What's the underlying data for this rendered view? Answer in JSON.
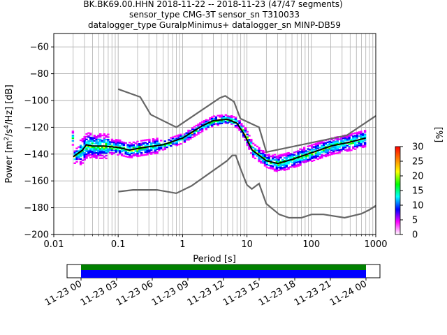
{
  "chart_data": {
    "type": "heatmap",
    "title_lines": [
      "BK.BK69.00.HHN   2018-11-22 -- 2018-11-23  (47/47 segments)",
      "sensor_type CMG-3T sensor_sn T310033",
      "datalogger_type GuralpMinimus+ datalogger_sn MINP-DB59"
    ],
    "xlabel": "Period [s]",
    "ylabel_main": "Power [m",
    "ylabel_sup1": "2",
    "ylabel_mid": "/s",
    "ylabel_sup2": "4",
    "ylabel_end": "/Hz] [dB]",
    "xscale": "log",
    "xlim": [
      0.01,
      1000
    ],
    "ylim": [
      -200,
      -50
    ],
    "grid": true,
    "xticks": [
      0.01,
      0.1,
      1,
      10,
      100,
      1000
    ],
    "xtick_labels": [
      "0.01",
      "0.1",
      "1",
      "10",
      "100",
      "1000"
    ],
    "yticks": [
      -200,
      -180,
      -160,
      -140,
      -120,
      -100,
      -80,
      -60
    ],
    "ytick_labels": [
      "−200",
      "−180",
      "−160",
      "−140",
      "−120",
      "−100",
      "−80",
      "−60"
    ],
    "colorbar": {
      "label": "[%]",
      "range": [
        0,
        30
      ],
      "ticks": [
        "0",
        "5",
        "10",
        "15",
        "20",
        "25",
        "30"
      ],
      "colormap": [
        "#ffffff",
        "#ff00ff",
        "#0000ff",
        "#00ffff",
        "#00ff00",
        "#ffff00",
        "#ff8000",
        "#ff0000"
      ]
    },
    "noise_model_high": [
      [
        0.1,
        -91.5
      ],
      [
        0.22,
        -97.4
      ],
      [
        0.32,
        -110.5
      ],
      [
        0.8,
        -120
      ],
      [
        3.8,
        -98
      ],
      [
        4.6,
        -96.5
      ],
      [
        6.3,
        -101
      ],
      [
        7.9,
        -113.5
      ],
      [
        15.4,
        -120
      ],
      [
        20,
        -138.5
      ],
      [
        354.8,
        -126
      ],
      [
        1000,
        -111.5
      ]
    ],
    "noise_model_low": [
      [
        0.1,
        -168
      ],
      [
        0.17,
        -166.7
      ],
      [
        0.4,
        -166.7
      ],
      [
        0.8,
        -169.2
      ],
      [
        1.38,
        -163.7
      ],
      [
        4,
        -148
      ],
      [
        4.9,
        -145
      ],
      [
        5.9,
        -141
      ],
      [
        6.7,
        -141
      ],
      [
        7.8,
        -150
      ],
      [
        10,
        -163
      ],
      [
        11.9,
        -166
      ],
      [
        15.4,
        -162
      ],
      [
        19.9,
        -177
      ],
      [
        31.6,
        -185
      ],
      [
        45,
        -187.5
      ],
      [
        70,
        -187.5
      ],
      [
        101,
        -185
      ],
      [
        154,
        -185
      ],
      [
        328,
        -187.5
      ],
      [
        600,
        -184.5
      ],
      [
        800,
        -181.5
      ],
      [
        1000,
        -178.5
      ]
    ],
    "mode_curve": [
      [
        0.02,
        -142
      ],
      [
        0.028,
        -137
      ],
      [
        0.032,
        -133
      ],
      [
        0.04,
        -134
      ],
      [
        0.06,
        -134
      ],
      [
        0.1,
        -135
      ],
      [
        0.15,
        -137
      ],
      [
        0.25,
        -135
      ],
      [
        0.5,
        -133
      ],
      [
        1,
        -128
      ],
      [
        2,
        -119
      ],
      [
        3,
        -115
      ],
      [
        5,
        -114
      ],
      [
        7,
        -117
      ],
      [
        9,
        -125
      ],
      [
        12,
        -137
      ],
      [
        20,
        -145
      ],
      [
        30,
        -147
      ],
      [
        50,
        -144
      ],
      [
        100,
        -139
      ],
      [
        200,
        -134
      ],
      [
        400,
        -131
      ],
      [
        700,
        -128
      ]
    ],
    "timeline": {
      "tick_labels": [
        "11-23 00",
        "11-23 03",
        "11-23 06",
        "11-23 09",
        "11-23 12",
        "11-23 15",
        "11-23 18",
        "11-23 21",
        "11-24 00"
      ],
      "colors": {
        "data": "#0000ff",
        "coverage": "#008000"
      }
    }
  }
}
